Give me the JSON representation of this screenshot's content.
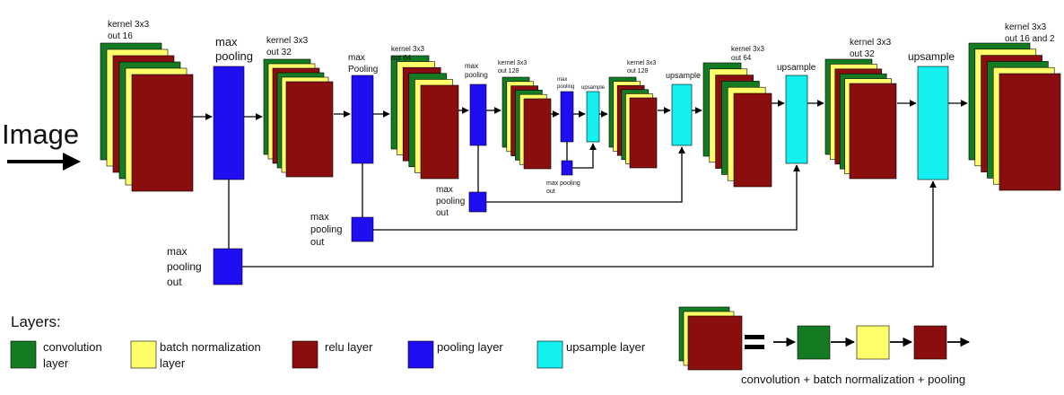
{
  "colors": {
    "convolution": "#147b22",
    "batch_norm": "#ffff6a",
    "relu": "#8b0e0e",
    "pooling": "#1f0ef2",
    "upsample": "#14f0f0",
    "line": "#000000"
  },
  "input_label": "Image",
  "labels": {
    "k16": [
      "kernel 3x3",
      "out 16"
    ],
    "k32a": [
      "kernel 3x3",
      "out 32"
    ],
    "k64a": [
      "kernel 3x3",
      "out 64"
    ],
    "k128a": [
      "kernel 3x3",
      "out 128"
    ],
    "k128b": [
      "kernel 3x3",
      "out 128"
    ],
    "k64b": [
      "kernel 3x3",
      "out 64"
    ],
    "k32b": [
      "kernel 3x3",
      "out 32"
    ],
    "k16b": [
      "kernel 3x3",
      "out 16 and 2"
    ],
    "pool1": [
      "max",
      "pooling"
    ],
    "pool2": [
      "max",
      "Pooling"
    ],
    "pool3": [
      "max",
      "pooling"
    ],
    "pool4": [
      "max",
      "pooling"
    ],
    "up4": [
      "upsample"
    ],
    "up3": [
      "upsample"
    ],
    "up2": [
      "upsample"
    ],
    "up1": [
      "upsample"
    ],
    "out1": [
      "max",
      "pooling",
      "out"
    ],
    "out2": [
      "max",
      "pooling",
      "out"
    ],
    "out3": [
      "max",
      "pooling",
      "out"
    ],
    "out4": [
      "max pooling",
      "out"
    ]
  },
  "legend": {
    "title": "Layers:",
    "items": [
      {
        "lines": [
          "convolution",
          "layer"
        ],
        "color_key": "convolution"
      },
      {
        "lines": [
          "batch normalization",
          "layer"
        ],
        "color_key": "batch_norm"
      },
      {
        "lines": [
          "relu layer"
        ],
        "color_key": "relu"
      },
      {
        "lines": [
          "pooling layer"
        ],
        "color_key": "pooling"
      },
      {
        "lines": [
          "upsample layer"
        ],
        "color_key": "upsample"
      }
    ],
    "equals_caption": "convolution + batch normalization + pooling"
  }
}
